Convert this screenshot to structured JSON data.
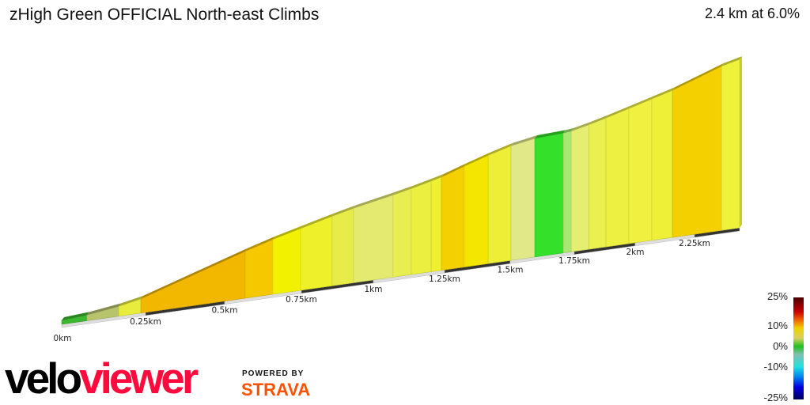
{
  "header": {
    "title": "zHigh Green OFFICIAL North-east Climbs",
    "summary": "2.4 km at 6.0%"
  },
  "chart_data": {
    "type": "area",
    "title": "zHigh Green OFFICIAL North-east Climbs",
    "xlabel": "",
    "ylabel": "",
    "x_unit": "km",
    "xlim": [
      0,
      2.4
    ],
    "x_ticks": [
      "0km",
      "0.25km",
      "0.5km",
      "0.75km",
      "1km",
      "1.25km",
      "1.5km",
      "1.75km",
      "2km",
      "2.25km"
    ],
    "x_tick_values": [
      0,
      0.25,
      0.5,
      0.75,
      1,
      1.25,
      1.5,
      1.75,
      2,
      2.25
    ],
    "segments": [
      {
        "start": 0,
        "end": 0.075,
        "gradient": 2,
        "color": "#3cb82e"
      },
      {
        "start": 0.075,
        "end": 0.17,
        "gradient": 4,
        "color": "#b7c46c"
      },
      {
        "start": 0.17,
        "end": 0.236,
        "gradient": 6,
        "color": "#e8ec3c"
      },
      {
        "start": 0.236,
        "end": 0.567,
        "gradient": 9,
        "color": "#f2b800"
      },
      {
        "start": 0.567,
        "end": 0.657,
        "gradient": 8,
        "color": "#f6c800"
      },
      {
        "start": 0.657,
        "end": 0.747,
        "gradient": 7,
        "color": "#f2f200"
      },
      {
        "start": 0.747,
        "end": 0.857,
        "gradient": 6.5,
        "color": "#eef02a"
      },
      {
        "start": 0.857,
        "end": 0.931,
        "gradient": 6,
        "color": "#e8ec48"
      },
      {
        "start": 0.931,
        "end": 1.069,
        "gradient": 5,
        "color": "#e4ea70"
      },
      {
        "start": 1.069,
        "end": 1.133,
        "gradient": 5.5,
        "color": "#e8ee52"
      },
      {
        "start": 1.133,
        "end": 1.203,
        "gradient": 6,
        "color": "#eaef40"
      },
      {
        "start": 1.203,
        "end": 1.239,
        "gradient": 6.5,
        "color": "#eef030"
      },
      {
        "start": 1.239,
        "end": 1.325,
        "gradient": 8,
        "color": "#f5d000"
      },
      {
        "start": 1.325,
        "end": 1.416,
        "gradient": 7.5,
        "color": "#f5e600"
      },
      {
        "start": 1.416,
        "end": 1.503,
        "gradient": 6.5,
        "color": "#eeee36"
      },
      {
        "start": 1.503,
        "end": 1.596,
        "gradient": 4,
        "color": "#e0e888"
      },
      {
        "start": 1.596,
        "end": 1.707,
        "gradient": 1,
        "color": "#35e02a"
      },
      {
        "start": 1.707,
        "end": 1.738,
        "gradient": 2.5,
        "color": "#a8e870"
      },
      {
        "start": 1.738,
        "end": 1.81,
        "gradient": 5,
        "color": "#e4ee70"
      },
      {
        "start": 1.81,
        "end": 1.88,
        "gradient": 5.5,
        "color": "#eaf050"
      },
      {
        "start": 1.88,
        "end": 1.974,
        "gradient": 6,
        "color": "#eef040"
      },
      {
        "start": 1.974,
        "end": 2.07,
        "gradient": 6,
        "color": "#f0f040"
      },
      {
        "start": 2.07,
        "end": 2.157,
        "gradient": 6,
        "color": "#eef038"
      },
      {
        "start": 2.157,
        "end": 2.34,
        "gradient": 8.5,
        "color": "#f5d000"
      },
      {
        "start": 2.34,
        "end": 2.4,
        "gradient": 6.5,
        "color": "#eef23a"
      }
    ],
    "legend": {
      "title": "",
      "labels": [
        "25%",
        "10%",
        "0%",
        "-10%",
        "-25%"
      ],
      "placement": "bottom-right"
    }
  },
  "branding": {
    "velo": "velo",
    "viewer": "viewer",
    "powered_by": "POWERED BY",
    "strava": "STRAVA"
  }
}
